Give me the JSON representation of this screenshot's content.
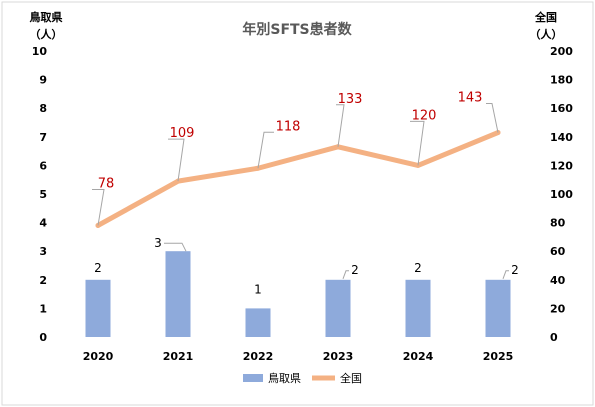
{
  "chart_data": {
    "type": "bar",
    "title": "年別SFTS患者数",
    "categories": [
      "2020",
      "2021",
      "2022",
      "2023",
      "2024",
      "2025"
    ],
    "y_left": {
      "label": [
        "鳥取県",
        "（人）"
      ],
      "range": [
        0,
        10
      ],
      "ticks": [
        "0",
        "1",
        "2",
        "3",
        "4",
        "5",
        "6",
        "7",
        "8",
        "9",
        "10"
      ]
    },
    "y_right": {
      "label": [
        "全国",
        "（人）"
      ],
      "range": [
        0,
        200
      ],
      "ticks": [
        "0",
        "20",
        "40",
        "60",
        "80",
        "100",
        "120",
        "140",
        "160",
        "180",
        "200"
      ]
    },
    "series": [
      {
        "name": "鳥取県",
        "type": "bar",
        "axis": "left",
        "values": [
          2,
          3,
          1,
          2,
          2,
          2
        ],
        "labels": [
          "2",
          "3",
          "1",
          "2",
          "2",
          "2"
        ],
        "color": "#8eaadb",
        "label_color": "#000000"
      },
      {
        "name": "全国",
        "type": "line",
        "axis": "right",
        "values": [
          78,
          109,
          118,
          133,
          120,
          143
        ],
        "labels": [
          "78",
          "109",
          "118",
          "133",
          "120",
          "143"
        ],
        "color": "#f4b183",
        "label_color": "#c00000"
      }
    ],
    "legend": "bottom",
    "grid": false
  }
}
